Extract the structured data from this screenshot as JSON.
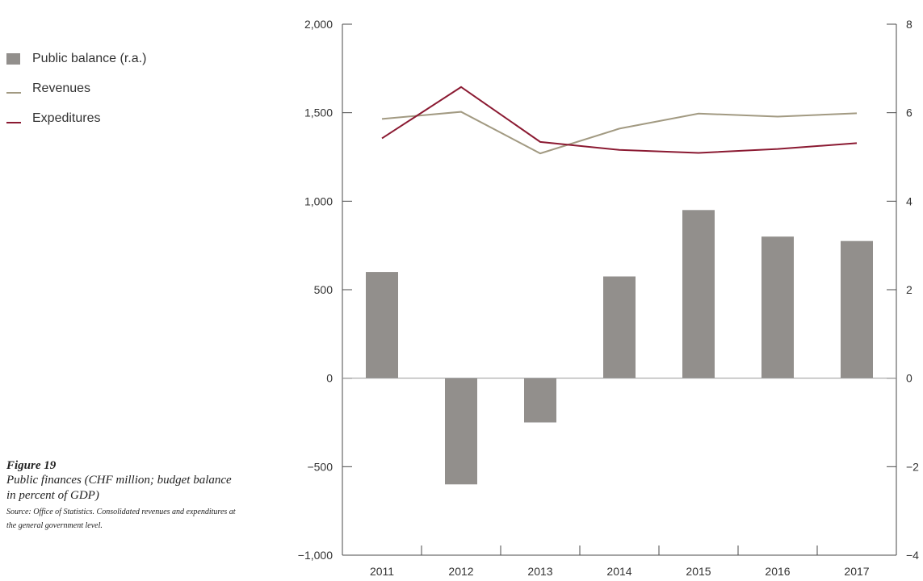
{
  "legend": [
    {
      "label": "Public balance (r.a.)",
      "kind": "box",
      "color": "#928f8c"
    },
    {
      "label": "Revenues",
      "kind": "line",
      "color": "#a29a82"
    },
    {
      "label": "Expeditures",
      "kind": "line",
      "color": "#8b1a32"
    }
  ],
  "caption": {
    "figure": "Figure 19",
    "title": "Public finances (CHF million; budget balance in percent of GDP)",
    "source": "Source: Office of Statistics. Consolidated revenues and expenditures at the general government level."
  },
  "chart_data": {
    "type": "bar+line",
    "categories": [
      "2011",
      "2012",
      "2013",
      "2014",
      "2015",
      "2016",
      "2017"
    ],
    "series": [
      {
        "name": "Public balance (r.a.)",
        "type": "bar",
        "axis": "right",
        "color": "#928f8c",
        "values": [
          2.4,
          -2.4,
          -1.0,
          2.3,
          3.8,
          3.2,
          3.1
        ]
      },
      {
        "name": "Revenues",
        "type": "line",
        "axis": "left",
        "color": "#a29a82",
        "values": [
          1465,
          1505,
          1270,
          1410,
          1495,
          1478,
          1497
        ]
      },
      {
        "name": "Expeditures",
        "type": "line",
        "axis": "left",
        "color": "#8b1a32",
        "values": [
          1355,
          1645,
          1335,
          1290,
          1273,
          1295,
          1328
        ]
      }
    ],
    "left_axis": {
      "ylim": [
        -1000,
        2000
      ],
      "ticks": [
        -1000,
        -500,
        0,
        500,
        1000,
        1500,
        2000
      ],
      "tick_labels": [
        "−1,000",
        "−500",
        "0",
        "500",
        "1,000",
        "1,500",
        "2,000"
      ]
    },
    "right_axis": {
      "ylim": [
        -4,
        8
      ],
      "ticks": [
        -4,
        -2,
        0,
        2,
        4,
        6,
        8
      ],
      "tick_labels": [
        "−4",
        "−2",
        "0",
        "2",
        "4",
        "6",
        "8"
      ]
    },
    "grid": false
  }
}
